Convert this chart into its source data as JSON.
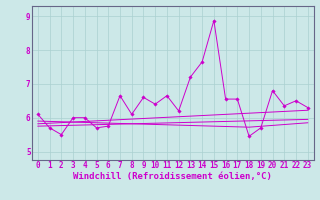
{
  "title": "",
  "xlabel": "Windchill (Refroidissement éolien,°C)",
  "background_color": "#cce8e8",
  "grid_color": "#aad0d0",
  "line_color": "#cc00cc",
  "spine_color": "#666688",
  "xlim": [
    -0.5,
    23.5
  ],
  "ylim": [
    4.75,
    9.3
  ],
  "yticks": [
    5,
    6,
    7,
    8,
    9
  ],
  "xticks": [
    0,
    1,
    2,
    3,
    4,
    5,
    6,
    7,
    8,
    9,
    10,
    11,
    12,
    13,
    14,
    15,
    16,
    17,
    18,
    19,
    20,
    21,
    22,
    23
  ],
  "series1_x": [
    0,
    1,
    2,
    3,
    4,
    5,
    6,
    7,
    8,
    9,
    10,
    11,
    12,
    13,
    14,
    15,
    16,
    17,
    18,
    19,
    20,
    21,
    22,
    23
  ],
  "series1_y": [
    6.1,
    5.7,
    5.5,
    6.0,
    6.0,
    5.7,
    5.75,
    6.65,
    6.1,
    6.6,
    6.4,
    6.65,
    6.2,
    7.2,
    7.65,
    8.87,
    6.55,
    6.55,
    5.45,
    5.7,
    6.8,
    6.35,
    6.5,
    6.3
  ],
  "series2_x": [
    0,
    23
  ],
  "series2_y": [
    5.82,
    6.22
  ],
  "series3_x": [
    0,
    23
  ],
  "series3_y": [
    5.75,
    5.95
  ],
  "series4_x": [
    0,
    18,
    23
  ],
  "series4_y": [
    5.9,
    5.72,
    5.85
  ],
  "tick_fontsize": 5.5,
  "xlabel_fontsize": 6.5,
  "figsize": [
    3.2,
    2.0
  ],
  "dpi": 100
}
